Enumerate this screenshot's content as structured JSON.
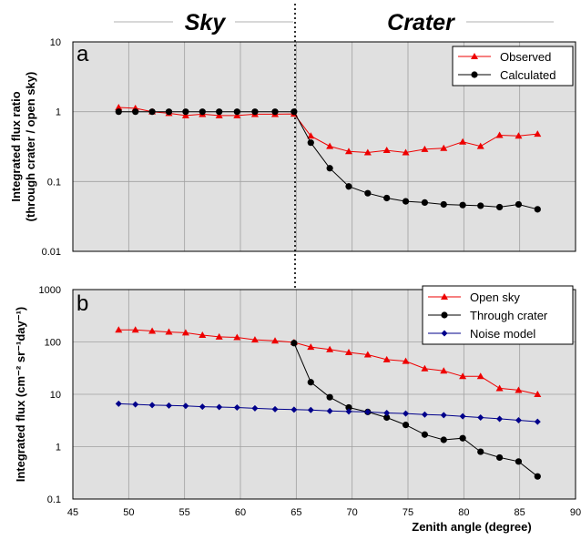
{
  "header": {
    "left_region": "Sky",
    "right_region": "Crater"
  },
  "xaxis": {
    "label": "Zenith angle (degree)",
    "ticks": [
      "45",
      "50",
      "55",
      "60",
      "65",
      "70",
      "75",
      "80",
      "85",
      "90"
    ]
  },
  "panel_a": {
    "letter": "a",
    "ylabel_line1": "Integrated flux ratio",
    "ylabel_line2": "(through crater / open sky)",
    "yticks": [
      "10",
      "1",
      "0.1",
      "0.01"
    ]
  },
  "panel_b": {
    "letter": "b",
    "ylabel": "Integrated flux (cm⁻² sr⁻¹day⁻¹)",
    "yticks": [
      "1000",
      "100",
      "10",
      "1",
      "0.1"
    ]
  },
  "colors": {
    "observed": "#ee0000",
    "calculated": "#000000",
    "open_sky": "#ee0000",
    "through_crater": "#000000",
    "noise_model": "#00008b",
    "plot_background": "#e0e0e0",
    "gridline": "#a0a0a0"
  },
  "chart_data": [
    {
      "type": "line",
      "panel": "a",
      "xlabel": "",
      "ylabel": "Integrated flux ratio (through crater / open sky)",
      "xlim": [
        45,
        90
      ],
      "ylim": [
        0.01,
        10
      ],
      "yscale": "log",
      "grid": true,
      "legend_position": "top-right",
      "series": [
        {
          "name": "Observed",
          "marker": "triangle",
          "color": "#ee0000",
          "x": [
            49.1,
            50.6,
            52.1,
            53.6,
            55.1,
            56.6,
            58.1,
            59.7,
            61.3,
            63.1,
            64.8,
            66.3,
            68.0,
            69.7,
            71.4,
            73.1,
            74.8,
            76.5,
            78.2,
            79.9,
            81.5,
            83.2,
            84.9,
            86.6
          ],
          "y": [
            1.15,
            1.12,
            1.0,
            0.95,
            0.88,
            0.92,
            0.88,
            0.88,
            0.92,
            0.92,
            0.93,
            0.45,
            0.32,
            0.27,
            0.26,
            0.28,
            0.26,
            0.29,
            0.3,
            0.37,
            0.32,
            0.46,
            0.45,
            0.48
          ]
        },
        {
          "name": "Calculated",
          "marker": "circle",
          "color": "#000000",
          "x": [
            49.1,
            50.6,
            52.1,
            53.6,
            55.1,
            56.6,
            58.1,
            59.7,
            61.3,
            63.1,
            64.8,
            66.3,
            68.0,
            69.7,
            71.4,
            73.1,
            74.8,
            76.5,
            78.2,
            79.9,
            81.5,
            83.2,
            84.9,
            86.6
          ],
          "y": [
            1.0,
            1.0,
            1.0,
            1.0,
            1.0,
            1.0,
            1.0,
            1.0,
            1.0,
            1.0,
            1.0,
            0.36,
            0.155,
            0.085,
            0.068,
            0.058,
            0.052,
            0.05,
            0.047,
            0.046,
            0.045,
            0.043,
            0.047,
            0.04
          ]
        }
      ]
    },
    {
      "type": "line",
      "panel": "b",
      "xlabel": "Zenith angle (degree)",
      "ylabel": "Integrated flux (cm⁻² sr⁻¹day⁻¹)",
      "xlim": [
        45,
        90
      ],
      "ylim": [
        0.1,
        1000
      ],
      "yscale": "log",
      "grid": true,
      "legend_position": "top-right",
      "series": [
        {
          "name": "Open sky",
          "marker": "triangle",
          "color": "#ee0000",
          "x": [
            49.1,
            50.6,
            52.1,
            53.6,
            55.1,
            56.6,
            58.1,
            59.7,
            61.3,
            63.1,
            64.8,
            66.3,
            68.0,
            69.7,
            71.4,
            73.1,
            74.8,
            76.5,
            78.2,
            79.9,
            81.5,
            83.2,
            84.9,
            86.6
          ],
          "y": [
            170,
            170,
            162,
            155,
            150,
            135,
            125,
            122,
            110,
            105,
            98,
            80,
            72,
            63,
            57,
            46,
            43,
            31,
            28,
            22,
            22,
            13,
            12,
            10
          ]
        },
        {
          "name": "Through crater",
          "marker": "circle",
          "color": "#000000",
          "x": [
            64.8,
            66.3,
            68.0,
            69.7,
            71.4,
            73.1,
            74.8,
            76.5,
            78.2,
            79.9,
            81.5,
            83.2,
            84.9,
            86.6
          ],
          "y": [
            95,
            17,
            8.8,
            5.6,
            4.6,
            3.6,
            2.6,
            1.7,
            1.35,
            1.45,
            0.8,
            0.62,
            0.52,
            0.27
          ]
        },
        {
          "name": "Noise model",
          "marker": "diamond",
          "color": "#00008b",
          "x": [
            49.1,
            50.6,
            52.1,
            53.6,
            55.1,
            56.6,
            58.1,
            59.7,
            61.3,
            63.1,
            64.8,
            66.3,
            68.0,
            69.7,
            71.4,
            73.1,
            74.8,
            76.5,
            78.2,
            79.9,
            81.5,
            83.2,
            84.9,
            86.6
          ],
          "y": [
            6.6,
            6.4,
            6.2,
            6.1,
            6.0,
            5.8,
            5.7,
            5.6,
            5.4,
            5.2,
            5.1,
            5.0,
            4.8,
            4.7,
            4.6,
            4.4,
            4.3,
            4.1,
            4.0,
            3.8,
            3.6,
            3.4,
            3.2,
            3.0
          ]
        }
      ]
    }
  ]
}
